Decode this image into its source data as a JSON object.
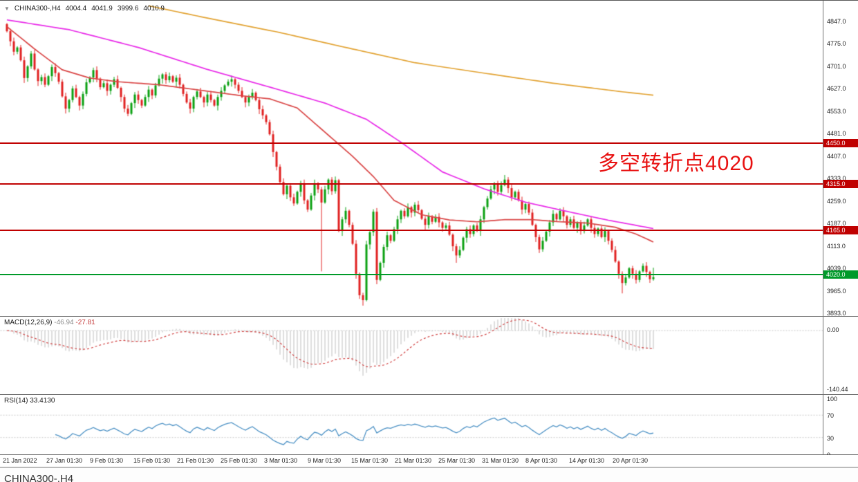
{
  "title": {
    "symbol": "CHINA300-,H4",
    "open": "4004.4",
    "high": "4041.9",
    "low": "3999.6",
    "close": "4010.9"
  },
  "annotation": {
    "text": "多空转折点4020",
    "color": "#e81010"
  },
  "indicators": {
    "macd": {
      "label": "MACD(12,26,9)",
      "value_main": "-46.94",
      "value_signal": "-27.81",
      "axis_zero": "0.00",
      "axis_min": "-140.44"
    },
    "rsi": {
      "label": "RSI(14)",
      "value": "33.4130",
      "axis_labels": [
        "100",
        "70",
        "30",
        "0"
      ]
    }
  },
  "time_axis": {
    "labels": [
      "21 Jan 2022",
      "27 Jan 01:30",
      "9 Feb 01:30",
      "15 Feb 01:30",
      "21 Feb 01:30",
      "25 Feb 01:30",
      "3 Mar 01:30",
      "9 Mar 01:30",
      "15 Mar 01:30",
      "21 Mar 01:30",
      "25 Mar 01:30",
      "31 Mar 01:30",
      "8 Apr 01:30",
      "14 Apr 01:30",
      "20 Apr 01:30"
    ]
  },
  "bottom_bar": {
    "tabs": [
      "CHINA300-,H4"
    ]
  },
  "chart_data": {
    "type": "candlestick",
    "symbol": "CHINA300-",
    "timeframe": "H4",
    "title": "CHINA300-,H4",
    "ohlc_current": {
      "open": 4004.4,
      "high": 4041.9,
      "low": 3999.6,
      "close": 4010.9
    },
    "ylim": [
      3881.7,
      4914.8
    ],
    "price_labels": [
      4847.0,
      4775.0,
      4701.0,
      4627.0,
      4553.0,
      4481.0,
      4407.0,
      4333.0,
      4259.0,
      4187.0,
      4113.0,
      4039.0,
      3965.0,
      3893.0
    ],
    "first_open": 4838,
    "closes": [
      4815,
      4782,
      4748,
      4762,
      4720,
      4662,
      4700,
      4742,
      4690,
      4652,
      4665,
      4640,
      4668,
      4698,
      4678,
      4650,
      4602,
      4562,
      4590,
      4628,
      4600,
      4572,
      4610,
      4648,
      4664,
      4688,
      4660,
      4632,
      4645,
      4620,
      4640,
      4658,
      4630,
      4600,
      4562,
      4545,
      4580,
      4608,
      4590,
      4572,
      4600,
      4624,
      4605,
      4638,
      4660,
      4674,
      4655,
      4668,
      4650,
      4663,
      4640,
      4610,
      4582,
      4562,
      4600,
      4618,
      4600,
      4582,
      4608,
      4590,
      4572,
      4600,
      4620,
      4638,
      4650,
      4658,
      4640,
      4620,
      4600,
      4582,
      4600,
      4614,
      4590,
      4560,
      4540,
      4518,
      4478,
      4420,
      4372,
      4322,
      4282,
      4310,
      4272,
      4252,
      4290,
      4318,
      4262,
      4232,
      4278,
      4318,
      4298,
      4255,
      4298,
      4330,
      4292,
      4328,
      4162,
      4200,
      4228,
      4182,
      4120,
      4022,
      3952,
      3936,
      4118,
      4158,
      4225,
      4002,
      4058,
      4110,
      4148,
      4130,
      4168,
      4200,
      4228,
      4210,
      4240,
      4222,
      4248,
      4230,
      4202,
      4182,
      4210,
      4192,
      4208,
      4190,
      4172,
      4180,
      4150,
      4112,
      4082,
      4100,
      4140,
      4168,
      4152,
      4180,
      4162,
      4200,
      4240,
      4268,
      4298,
      4318,
      4290,
      4312,
      4330,
      4302,
      4272,
      4290,
      4262,
      4232,
      4250,
      4222,
      4182,
      4142,
      4102,
      4130,
      4160,
      4190,
      4218,
      4200,
      4228,
      4210,
      4182,
      4200,
      4172,
      4190,
      4162,
      4180,
      4200,
      4172,
      4152,
      4170,
      4142,
      4162,
      4130,
      4100,
      4062,
      4022,
      3992,
      4010,
      4040,
      4022,
      4002,
      4030,
      4048,
      4028,
      4004.4,
      4010.9
    ],
    "special_lows": {
      "91": 4030,
      "103": 3918,
      "107": 3988,
      "130": 4058,
      "178": 3958,
      "187": 3999.6
    },
    "special_highs": {
      "144": 4345,
      "187": 4041.9
    },
    "hlines": [
      {
        "price": 4450.0,
        "color": "#c00000",
        "kind": "resistance"
      },
      {
        "price": 4315.0,
        "color": "#c00000",
        "kind": "resistance"
      },
      {
        "price": 4165.0,
        "color": "#c00000",
        "kind": "resistance"
      },
      {
        "price": 4020.0,
        "color": "#009a2a",
        "kind": "pivot"
      }
    ],
    "moving_averages": [
      {
        "name": "ma-medium-magenta",
        "color": "#e82ae8",
        "points": [
          [
            0,
            4852
          ],
          [
            18,
            4820
          ],
          [
            38,
            4762
          ],
          [
            58,
            4690
          ],
          [
            78,
            4626
          ],
          [
            92,
            4580
          ],
          [
            104,
            4527
          ],
          [
            114,
            4452
          ],
          [
            126,
            4355
          ],
          [
            138,
            4300
          ],
          [
            150,
            4256
          ],
          [
            162,
            4226
          ],
          [
            174,
            4197
          ],
          [
            187,
            4170
          ]
        ]
      },
      {
        "name": "ma-fast-red",
        "color": "#d94545",
        "points": [
          [
            0,
            4830
          ],
          [
            8,
            4757
          ],
          [
            16,
            4689
          ],
          [
            24,
            4662
          ],
          [
            32,
            4650
          ],
          [
            44,
            4640
          ],
          [
            56,
            4622
          ],
          [
            68,
            4604
          ],
          [
            76,
            4594
          ],
          [
            84,
            4564
          ],
          [
            92,
            4485
          ],
          [
            100,
            4406
          ],
          [
            106,
            4340
          ],
          [
            112,
            4262
          ],
          [
            120,
            4215
          ],
          [
            128,
            4198
          ],
          [
            136,
            4192
          ],
          [
            144,
            4199
          ],
          [
            152,
            4199
          ],
          [
            160,
            4192
          ],
          [
            168,
            4188
          ],
          [
            176,
            4174
          ],
          [
            182,
            4152
          ],
          [
            187,
            4126
          ]
        ]
      },
      {
        "name": "ma-slow-orange",
        "color": "#e2a231",
        "points": [
          [
            41,
            4898
          ],
          [
            58,
            4858
          ],
          [
            78,
            4813
          ],
          [
            98,
            4762
          ],
          [
            118,
            4712
          ],
          [
            138,
            4678
          ],
          [
            158,
            4645
          ],
          [
            178,
            4617
          ],
          [
            187,
            4606
          ]
        ]
      }
    ],
    "macd": {
      "params": [
        12,
        26,
        9
      ],
      "current_main": -46.94,
      "current_signal": -27.81,
      "axis_min": -140.44
    },
    "rsi": {
      "period": 14,
      "current": 33.413,
      "levels": [
        100,
        70,
        30,
        0
      ]
    },
    "colors": {
      "up": "#0ba012",
      "down": "#e02020",
      "macd_bar": "#bdbdbd",
      "macd_signal": "#d04040",
      "rsi_line": "#4a90c4",
      "level_dotted": "#c8c8c8"
    }
  }
}
